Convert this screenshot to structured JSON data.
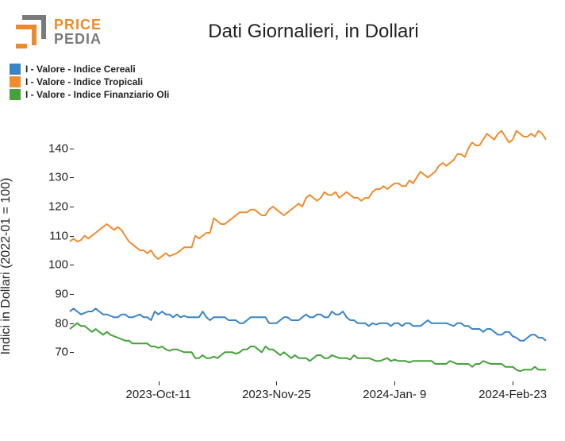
{
  "logo": {
    "top": "PRICE",
    "bottom": "PEDIA",
    "color_top": "#ec8b2b",
    "color_bottom": "#7a7a7a",
    "mark_outer": "#7a7a7a",
    "mark_inner": "#ec8b2b"
  },
  "title": "Dati Giornalieri, in Dollari",
  "ylabel": "Indici in Dollari (2022-01 = 100)",
  "legend": [
    {
      "label": "I - Valore - Indice Cereali",
      "color": "#3a84c4"
    },
    {
      "label": "I - Valore - Indice Tropicali",
      "color": "#f08c2e"
    },
    {
      "label": "I - Valore - Indice Finanziario Oli",
      "color": "#45a13a"
    }
  ],
  "chart": {
    "type": "line",
    "ylim": [
      60,
      150
    ],
    "yticks": [
      70,
      80,
      90,
      100,
      110,
      120,
      130,
      140
    ],
    "x_count": 130,
    "xtick_positions": [
      24,
      56,
      88,
      120
    ],
    "xtick_labels": [
      "2023-Oct-11",
      "2023-Nov-25",
      "2024-Jan- 9",
      "2024-Feb-23"
    ],
    "background": "#ffffff",
    "line_width": 2,
    "series": [
      {
        "name": "cereali",
        "color": "#3a84c4",
        "values": [
          84,
          85,
          84,
          83,
          83.5,
          84,
          84,
          85,
          84,
          83,
          83,
          82.5,
          82,
          82,
          83,
          83,
          82,
          82,
          82.5,
          83,
          82,
          82,
          81,
          84,
          83,
          84,
          83,
          83,
          82,
          83,
          82,
          82.5,
          82,
          82,
          82,
          82,
          84,
          82,
          81,
          82,
          82,
          82,
          82,
          81,
          81,
          81,
          80,
          80,
          81,
          82,
          82,
          82,
          82,
          82,
          80,
          80,
          80,
          81,
          82,
          82,
          81,
          81,
          81,
          82,
          83,
          82,
          82,
          83,
          83,
          82,
          82,
          84,
          83,
          83,
          84,
          82,
          81,
          81,
          80,
          80,
          80,
          79,
          80,
          79.5,
          80,
          80,
          80,
          79,
          80,
          80,
          79,
          80,
          80,
          79,
          79,
          79,
          80,
          81,
          80,
          80,
          80,
          80,
          80,
          79.5,
          79,
          80,
          80,
          79,
          79,
          78,
          78,
          78,
          77,
          78,
          78,
          77,
          76,
          76,
          77,
          77,
          75.5,
          75,
          74,
          74,
          75,
          76,
          76,
          75,
          75,
          74
        ]
      },
      {
        "name": "tropicali",
        "color": "#f08c2e",
        "values": [
          108,
          109,
          108,
          108.5,
          110,
          109,
          110,
          111,
          112,
          113,
          114,
          113,
          112,
          113,
          112,
          110,
          108,
          107,
          106,
          105,
          105,
          104,
          105,
          103,
          102,
          103,
          104,
          103,
          103.5,
          104,
          105,
          106,
          106,
          106,
          110,
          109,
          110,
          111,
          111,
          116,
          115,
          114,
          114,
          115,
          116,
          117,
          118,
          118,
          118,
          119,
          119,
          118,
          117,
          117,
          119,
          120,
          119,
          118,
          117,
          118,
          119,
          120,
          121,
          120,
          123,
          124,
          123,
          122,
          123,
          125,
          124,
          124,
          125,
          123,
          124,
          125,
          124,
          123,
          123,
          122,
          123,
          123,
          125,
          126,
          126,
          127,
          126,
          127,
          128,
          128,
          127,
          127,
          129,
          128,
          130,
          132,
          131,
          130,
          131,
          132,
          134,
          135,
          134,
          135,
          136,
          138,
          138,
          137,
          140,
          142,
          141,
          141,
          143,
          145,
          144,
          143,
          145,
          146,
          144,
          142,
          143,
          146,
          145,
          144,
          144,
          145,
          144,
          146,
          145,
          143
        ]
      },
      {
        "name": "oli",
        "color": "#45a13a",
        "values": [
          78,
          79,
          80,
          79,
          79,
          78,
          77,
          78,
          77,
          76,
          77,
          76,
          75.5,
          75,
          74.5,
          74,
          74,
          73,
          73,
          73,
          73,
          73,
          72,
          72,
          71.5,
          72,
          71,
          70.5,
          71,
          71,
          70.5,
          70,
          70,
          70,
          68,
          68,
          69,
          68,
          68,
          68.5,
          68,
          69,
          70,
          70,
          70,
          69.5,
          70,
          71,
          71,
          72,
          72,
          71,
          70,
          72,
          71,
          71,
          70,
          69,
          70,
          69,
          68,
          69,
          68,
          68,
          68,
          67,
          68,
          69,
          69,
          68,
          68,
          69,
          68.5,
          68,
          68,
          68,
          67.5,
          69,
          68,
          68,
          68,
          68,
          67.5,
          67,
          67,
          67.5,
          68,
          67,
          67.5,
          67,
          67,
          67,
          66.5,
          67,
          67,
          67,
          67,
          67,
          67,
          66,
          66,
          66,
          66,
          67,
          66.5,
          66,
          66,
          66,
          66,
          65,
          66,
          66,
          67,
          66.5,
          66,
          66,
          66,
          66,
          65,
          65,
          65,
          64,
          63.5,
          64,
          64,
          64,
          65,
          64,
          64,
          64
        ]
      }
    ]
  }
}
